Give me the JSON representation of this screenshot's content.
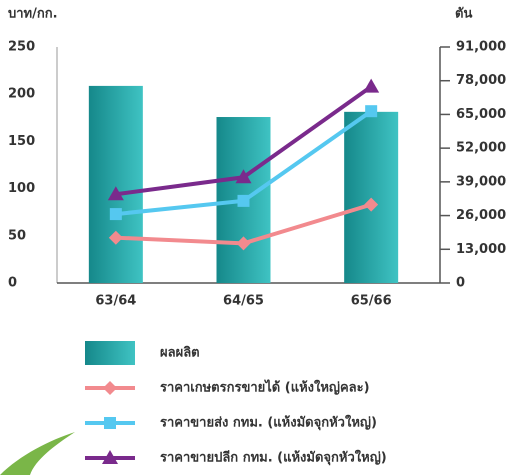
{
  "chart_data": {
    "type": "bar",
    "y_label": "บาท/กก.",
    "y2_label": "ตัน",
    "categories": [
      "63/64",
      "64/65",
      "65/66"
    ],
    "ylim": [
      0,
      250
    ],
    "yticks": [
      0,
      50,
      100,
      150,
      200,
      250
    ],
    "y2lim": [
      0,
      91000
    ],
    "y2ticks": [
      0,
      {
        "value": 13000,
        "label": "13,000"
      },
      {
        "value": 26000,
        "label": "26,000"
      },
      {
        "value": 39000,
        "label": "39,000"
      },
      {
        "value": 52000,
        "label": "52,000"
      },
      {
        "value": 65000,
        "label": "65,000"
      },
      {
        "value": 78000,
        "label": "78,000"
      },
      {
        "value": 91000,
        "label": "91,000"
      }
    ],
    "series": [
      {
        "name": "ผลผลิต",
        "type": "bar",
        "axis": "y2",
        "color": "#2aa8a8",
        "values": [
          76000,
          64000,
          66000
        ]
      },
      {
        "name": "ราคาเกษตรกรขายได้ (แห้งใหญ่คละ)",
        "type": "line",
        "marker": "diamond",
        "axis": "y",
        "color": "#f28a8e",
        "values": [
          48,
          42,
          83
        ]
      },
      {
        "name": "ราคาขายส่ง กทม. (แห้งมัดจุกหัวใหญ่)",
        "type": "line",
        "marker": "square",
        "axis": "y",
        "color": "#55c8f0",
        "values": [
          73,
          87,
          182
        ]
      },
      {
        "name": "ราคาขายปลีก กทม. (แห้งมัดจุกหัวใหญ่)",
        "type": "line",
        "marker": "triangle",
        "axis": "y",
        "color": "#7a2a8c",
        "values": [
          94,
          112,
          208
        ]
      }
    ]
  }
}
